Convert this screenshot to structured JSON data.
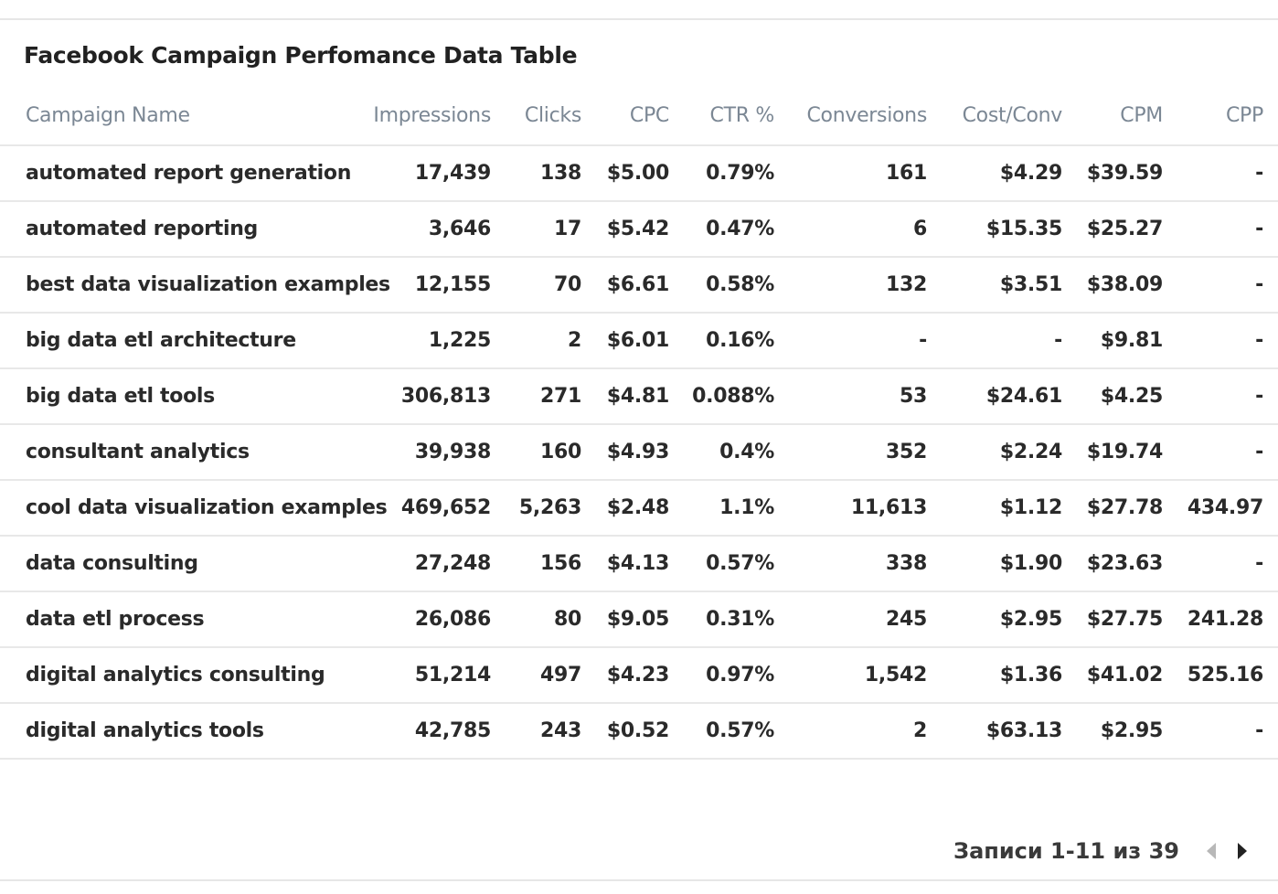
{
  "title": "Facebook Campaign Perfomance Data Table",
  "columns": [
    "Campaign Name",
    "Impressions",
    "Clicks",
    "CPC",
    "CTR %",
    "Conversions",
    "Cost/Conv",
    "CPM",
    "CPP"
  ],
  "rows": [
    [
      "automated report generation",
      "17,439",
      "138",
      "$5.00",
      "0.79%",
      "161",
      "$4.29",
      "$39.59",
      "-"
    ],
    [
      "automated reporting",
      "3,646",
      "17",
      "$5.42",
      "0.47%",
      "6",
      "$15.35",
      "$25.27",
      "-"
    ],
    [
      "best data visualization examples",
      "12,155",
      "70",
      "$6.61",
      "0.58%",
      "132",
      "$3.51",
      "$38.09",
      "-"
    ],
    [
      "big data etl architecture",
      "1,225",
      "2",
      "$6.01",
      "0.16%",
      "-",
      "-",
      "$9.81",
      "-"
    ],
    [
      "big data etl tools",
      "306,813",
      "271",
      "$4.81",
      "0.088%",
      "53",
      "$24.61",
      "$4.25",
      "-"
    ],
    [
      "consultant analytics",
      "39,938",
      "160",
      "$4.93",
      "0.4%",
      "352",
      "$2.24",
      "$19.74",
      "-"
    ],
    [
      "cool data visualization examples",
      "469,652",
      "5,263",
      "$2.48",
      "1.1%",
      "11,613",
      "$1.12",
      "$27.78",
      "434.97"
    ],
    [
      "data consulting",
      "27,248",
      "156",
      "$4.13",
      "0.57%",
      "338",
      "$1.90",
      "$23.63",
      "-"
    ],
    [
      "data etl process",
      "26,086",
      "80",
      "$9.05",
      "0.31%",
      "245",
      "$2.95",
      "$27.75",
      "241.28"
    ],
    [
      "digital analytics consulting",
      "51,214",
      "497",
      "$4.23",
      "0.97%",
      "1,542",
      "$1.36",
      "$41.02",
      "525.16"
    ],
    [
      "digital analytics tools",
      "42,785",
      "243",
      "$0.52",
      "0.57%",
      "2",
      "$63.13",
      "$2.95",
      "-"
    ]
  ],
  "pager": {
    "label": "Записи 1-11 из 39",
    "prev_icon": "chevron-left-icon",
    "next_icon": "chevron-right-icon",
    "prev_color": "#b8b8b8",
    "next_color": "#222222"
  },
  "colors": {
    "header_text": "#7b8794",
    "body_text": "#2a2a2a",
    "divider": "#e8e8e8"
  }
}
